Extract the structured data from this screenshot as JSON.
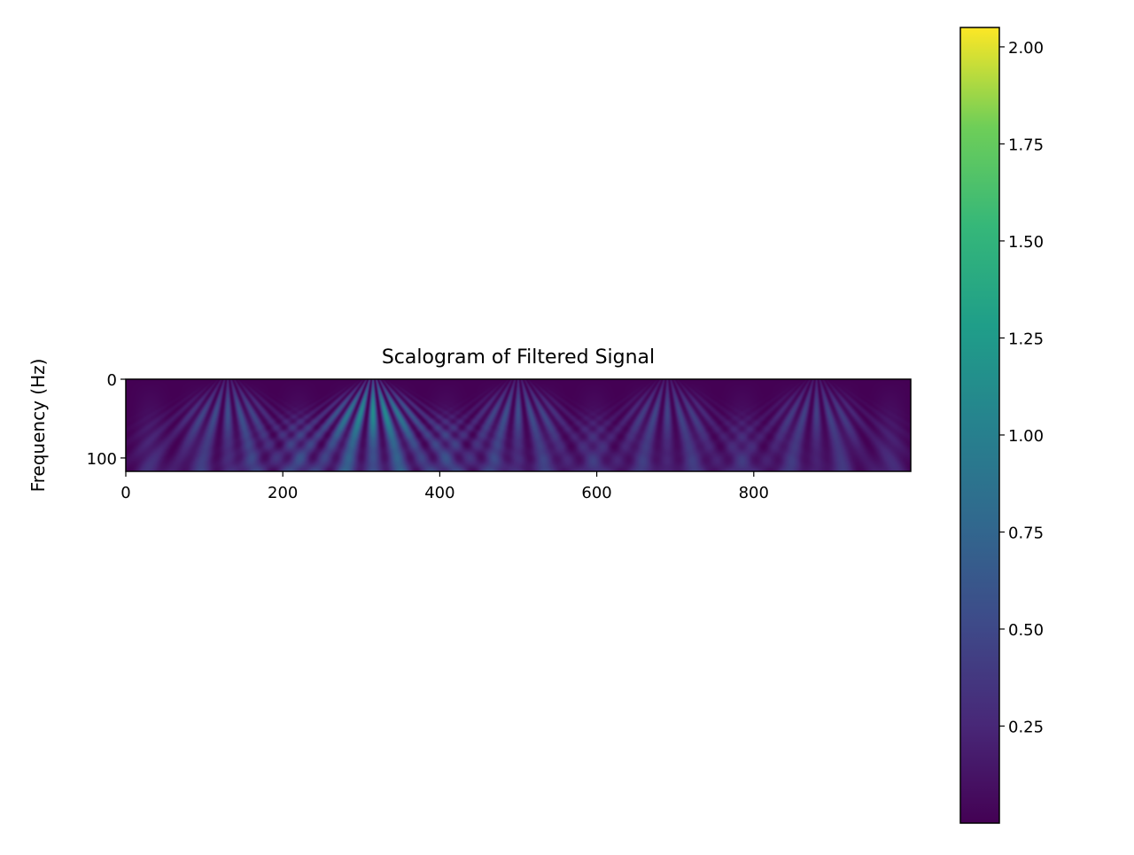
{
  "chart_data": {
    "type": "heatmap",
    "title": "Scalogram of Filtered Signal",
    "xlabel": "",
    "ylabel": "Frequency (Hz)",
    "x_range": [
      0,
      1000
    ],
    "y_range": [
      0,
      117
    ],
    "y_inverted": true,
    "x_ticks": [
      0,
      200,
      400,
      600,
      800
    ],
    "y_ticks": [
      0,
      100
    ],
    "colormap": "viridis",
    "colorbar": {
      "range": [
        0.0,
        2.05
      ],
      "ticks": [
        0.25,
        0.5,
        0.75,
        1.0,
        1.25,
        1.5,
        1.75,
        2.0
      ],
      "tick_labels": [
        "0.25",
        "0.50",
        "0.75",
        "1.00",
        "1.25",
        "1.50",
        "1.75",
        "2.00"
      ]
    },
    "bursts": [
      {
        "x_center": 130,
        "peak": 1.0
      },
      {
        "x_center": 315,
        "peak": 2.05
      },
      {
        "x_center": 500,
        "peak": 1.0
      },
      {
        "x_center": 690,
        "peak": 0.85
      },
      {
        "x_center": 880,
        "peak": 0.8
      }
    ],
    "grid": false,
    "legend": "none"
  }
}
